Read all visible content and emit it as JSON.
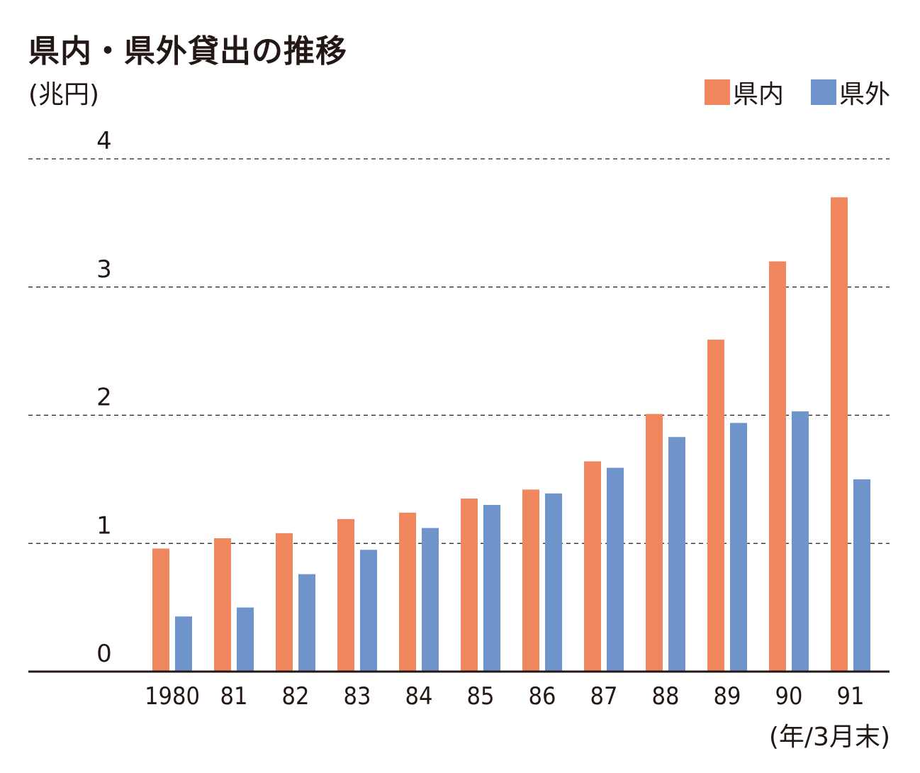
{
  "title": "県内・県外貸出の推移",
  "unit_label": "(兆円)",
  "x_unit_label": "(年/3月末)",
  "legend": [
    {
      "label": "県内",
      "color": "#f0875e"
    },
    {
      "label": "県外",
      "color": "#6f94cc"
    }
  ],
  "chart_data": {
    "type": "bar",
    "title": "県内・県外貸出の推移",
    "ylabel": "(兆円)",
    "xlabel": "(年/3月末)",
    "ylim": [
      0,
      4
    ],
    "yticks": [
      0,
      1,
      2,
      3,
      4
    ],
    "grid": true,
    "legend_position": "top-right",
    "categories": [
      "1980",
      "81",
      "82",
      "83",
      "84",
      "85",
      "86",
      "87",
      "88",
      "89",
      "90",
      "91"
    ],
    "series": [
      {
        "name": "県内",
        "color": "#f0875e",
        "values": [
          0.96,
          1.04,
          1.08,
          1.19,
          1.24,
          1.35,
          1.42,
          1.64,
          2.01,
          2.59,
          3.2,
          3.7
        ]
      },
      {
        "name": "県外",
        "color": "#6f94cc",
        "values": [
          0.43,
          0.5,
          0.76,
          0.95,
          1.12,
          1.3,
          1.39,
          1.59,
          1.83,
          1.94,
          2.03,
          1.5
        ]
      }
    ]
  }
}
